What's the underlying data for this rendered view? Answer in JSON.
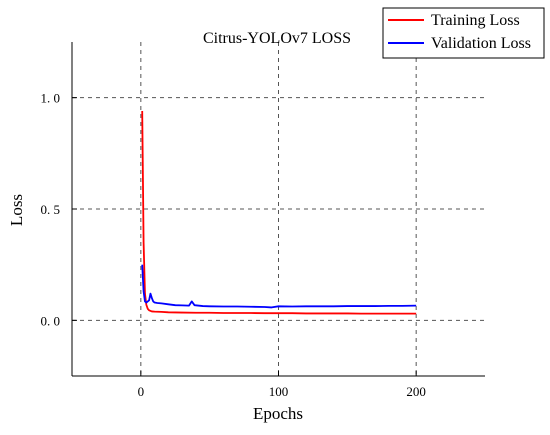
{
  "chart_data": {
    "type": "line",
    "title": "Citrus-YOLOv7 LOSS",
    "xlabel": "Epochs",
    "ylabel": "Loss",
    "xlim": [
      -50,
      250
    ],
    "ylim": [
      -0.25,
      1.25
    ],
    "xticks": [
      0,
      100,
      200
    ],
    "xtick_labels": [
      "0",
      "100",
      "200"
    ],
    "yticks": [
      0.0,
      0.5,
      1.0
    ],
    "ytick_labels": [
      "0. 0",
      "0. 5",
      "1. 0"
    ],
    "grid": true,
    "grid_style": "dashed",
    "legend_position": "top-right",
    "series": [
      {
        "name": "Training Loss",
        "color": "#ff0000",
        "x": [
          1,
          2,
          3,
          4,
          5,
          6,
          8,
          10,
          15,
          20,
          30,
          40,
          50,
          60,
          70,
          80,
          90,
          100,
          110,
          120,
          130,
          140,
          150,
          160,
          170,
          180,
          190,
          200
        ],
        "y": [
          0.94,
          0.35,
          0.12,
          0.07,
          0.052,
          0.045,
          0.04,
          0.039,
          0.038,
          0.036,
          0.035,
          0.034,
          0.034,
          0.033,
          0.033,
          0.033,
          0.032,
          0.032,
          0.032,
          0.031,
          0.031,
          0.031,
          0.031,
          0.03,
          0.03,
          0.03,
          0.03,
          0.03
        ]
      },
      {
        "name": "Validation Loss",
        "color": "#0000ff",
        "x": [
          1,
          2,
          3,
          4,
          5,
          6,
          7,
          8,
          9,
          10,
          12,
          15,
          20,
          25,
          30,
          35,
          37,
          39,
          45,
          50,
          60,
          70,
          80,
          90,
          95,
          100,
          110,
          120,
          130,
          140,
          150,
          160,
          170,
          180,
          190,
          200
        ],
        "y": [
          0.25,
          0.13,
          0.085,
          0.08,
          0.085,
          0.09,
          0.12,
          0.1,
          0.085,
          0.08,
          0.078,
          0.076,
          0.072,
          0.068,
          0.067,
          0.066,
          0.085,
          0.068,
          0.064,
          0.063,
          0.062,
          0.062,
          0.061,
          0.06,
          0.058,
          0.063,
          0.062,
          0.063,
          0.063,
          0.063,
          0.064,
          0.064,
          0.064,
          0.065,
          0.065,
          0.066
        ]
      }
    ]
  }
}
